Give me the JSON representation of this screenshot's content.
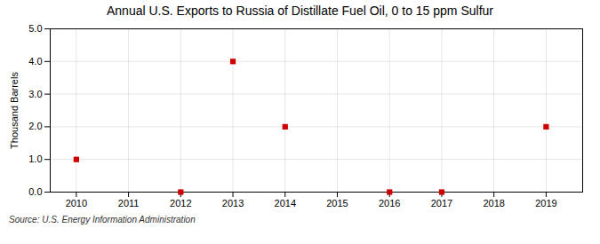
{
  "chart_data": {
    "type": "scatter",
    "title": "Annual U.S. Exports to Russia of Distillate Fuel Oil, 0 to 15 ppm Sulfur",
    "ylabel": "Thousand Barrels",
    "source": "Source: U.S. Energy Information Administration",
    "x": [
      2010,
      2012,
      2013,
      2014,
      2016,
      2017,
      2019
    ],
    "values": [
      1.0,
      0.0,
      4.0,
      2.0,
      0.0,
      0.0,
      2.0
    ],
    "color": "#CC0000",
    "marker": "square",
    "xlim": [
      2009.5,
      2019.7
    ],
    "xticks": [
      2010,
      2011,
      2012,
      2013,
      2014,
      2015,
      2016,
      2017,
      2018,
      2019
    ],
    "ylim": [
      0.0,
      5.0
    ],
    "yticks": [
      {
        "value": 0.0,
        "label": "0.0"
      },
      {
        "value": 1.0,
        "label": "1.0"
      },
      {
        "value": 2.0,
        "label": "2.0"
      },
      {
        "value": 3.0,
        "label": "3.0"
      },
      {
        "value": 4.0,
        "label": "4.0"
      },
      {
        "value": 5.0,
        "label": "5.0"
      }
    ],
    "grid": true
  }
}
